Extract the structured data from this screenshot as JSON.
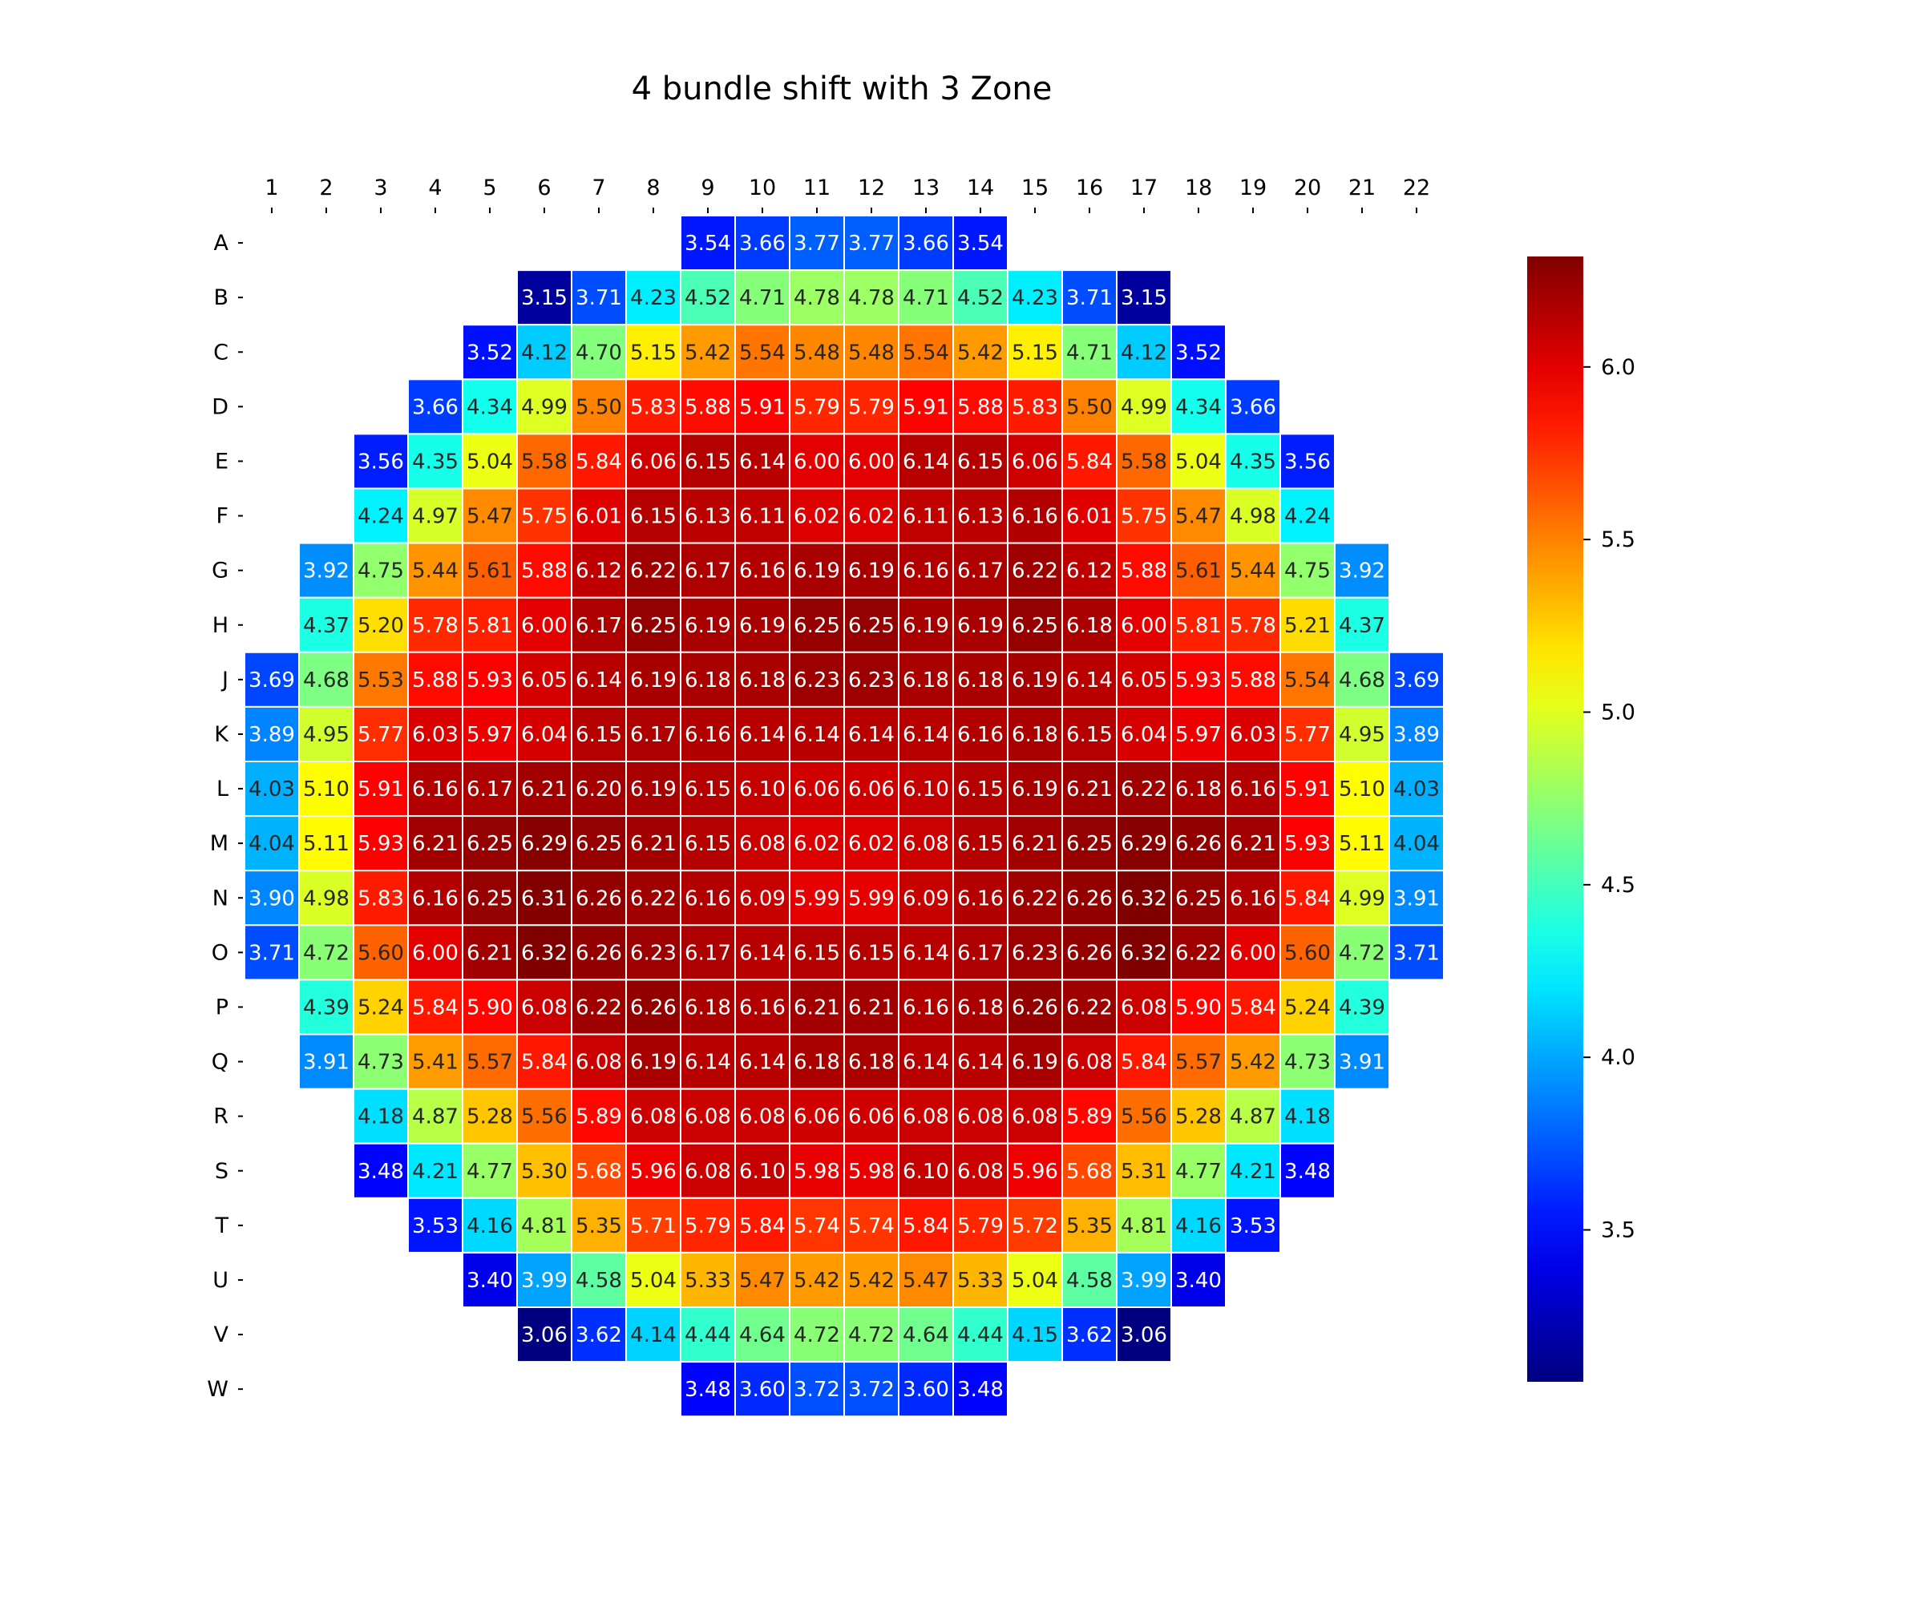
{
  "chart_data": {
    "type": "heatmap",
    "title": "4 bundle shift with 3 Zone",
    "x_labels": [
      "1",
      "2",
      "3",
      "4",
      "5",
      "6",
      "7",
      "8",
      "9",
      "10",
      "11",
      "12",
      "13",
      "14",
      "15",
      "16",
      "17",
      "18",
      "19",
      "20",
      "21",
      "22"
    ],
    "x_axis_position": "top",
    "y_labels": [
      "A",
      "B",
      "C",
      "D",
      "E",
      "F",
      "G",
      "H",
      "J",
      "K",
      "L",
      "M",
      "N",
      "O",
      "P",
      "Q",
      "R",
      "S",
      "T",
      "U",
      "V",
      "W"
    ],
    "colormap": "jet",
    "vmin": 3.06,
    "vmax": 6.32,
    "colorbar_ticks": [
      "6.0",
      "5.5",
      "5.0",
      "4.5",
      "4.0",
      "3.5"
    ],
    "colorbar_tick_values": [
      6.0,
      5.5,
      5.0,
      4.5,
      4.0,
      3.5
    ],
    "colorbar_position": "right",
    "cell_border_color": "#ffffff",
    "rows": [
      {
        "label": "A",
        "start": 9,
        "values": [
          "3.54",
          "3.66",
          "3.77",
          "3.77",
          "3.66",
          "3.54"
        ]
      },
      {
        "label": "B",
        "start": 6,
        "values": [
          "3.15",
          "3.71",
          "4.23",
          "4.52",
          "4.71",
          "4.78",
          "4.78",
          "4.71",
          "4.52",
          "4.23",
          "3.71",
          "3.15"
        ]
      },
      {
        "label": "C",
        "start": 5,
        "values": [
          "3.52",
          "4.12",
          "4.70",
          "5.15",
          "5.42",
          "5.54",
          "5.48",
          "5.48",
          "5.54",
          "5.42",
          "5.15",
          "4.71",
          "4.12",
          "3.52"
        ]
      },
      {
        "label": "D",
        "start": 4,
        "values": [
          "3.66",
          "4.34",
          "4.99",
          "5.50",
          "5.83",
          "5.88",
          "5.91",
          "5.79",
          "5.79",
          "5.91",
          "5.88",
          "5.83",
          "5.50",
          "4.99",
          "4.34",
          "3.66"
        ]
      },
      {
        "label": "E",
        "start": 3,
        "values": [
          "3.56",
          "4.35",
          "5.04",
          "5.58",
          "5.84",
          "6.06",
          "6.15",
          "6.14",
          "6.00",
          "6.00",
          "6.14",
          "6.15",
          "6.06",
          "5.84",
          "5.58",
          "5.04",
          "4.35",
          "3.56"
        ]
      },
      {
        "label": "F",
        "start": 3,
        "values": [
          "4.24",
          "4.97",
          "5.47",
          "5.75",
          "6.01",
          "6.15",
          "6.13",
          "6.11",
          "6.02",
          "6.02",
          "6.11",
          "6.13",
          "6.16",
          "6.01",
          "5.75",
          "5.47",
          "4.98",
          "4.24"
        ]
      },
      {
        "label": "G",
        "start": 2,
        "values": [
          "3.92",
          "4.75",
          "5.44",
          "5.61",
          "5.88",
          "6.12",
          "6.22",
          "6.17",
          "6.16",
          "6.19",
          "6.19",
          "6.16",
          "6.17",
          "6.22",
          "6.12",
          "5.88",
          "5.61",
          "5.44",
          "4.75",
          "3.92"
        ]
      },
      {
        "label": "H",
        "start": 2,
        "values": [
          "4.37",
          "5.20",
          "5.78",
          "5.81",
          "6.00",
          "6.17",
          "6.25",
          "6.19",
          "6.19",
          "6.25",
          "6.25",
          "6.19",
          "6.19",
          "6.25",
          "6.18",
          "6.00",
          "5.81",
          "5.78",
          "5.21",
          "4.37"
        ]
      },
      {
        "label": "J",
        "start": 1,
        "values": [
          "3.69",
          "4.68",
          "5.53",
          "5.88",
          "5.93",
          "6.05",
          "6.14",
          "6.19",
          "6.18",
          "6.18",
          "6.23",
          "6.23",
          "6.18",
          "6.18",
          "6.19",
          "6.14",
          "6.05",
          "5.93",
          "5.88",
          "5.54",
          "4.68",
          "3.69"
        ]
      },
      {
        "label": "K",
        "start": 1,
        "values": [
          "3.89",
          "4.95",
          "5.77",
          "6.03",
          "5.97",
          "6.04",
          "6.15",
          "6.17",
          "6.16",
          "6.14",
          "6.14",
          "6.14",
          "6.14",
          "6.16",
          "6.18",
          "6.15",
          "6.04",
          "5.97",
          "6.03",
          "5.77",
          "4.95",
          "3.89"
        ]
      },
      {
        "label": "L",
        "start": 1,
        "values": [
          "4.03",
          "5.10",
          "5.91",
          "6.16",
          "6.17",
          "6.21",
          "6.20",
          "6.19",
          "6.15",
          "6.10",
          "6.06",
          "6.06",
          "6.10",
          "6.15",
          "6.19",
          "6.21",
          "6.22",
          "6.18",
          "6.16",
          "5.91",
          "5.10",
          "4.03"
        ]
      },
      {
        "label": "M",
        "start": 1,
        "values": [
          "4.04",
          "5.11",
          "5.93",
          "6.21",
          "6.25",
          "6.29",
          "6.25",
          "6.21",
          "6.15",
          "6.08",
          "6.02",
          "6.02",
          "6.08",
          "6.15",
          "6.21",
          "6.25",
          "6.29",
          "6.26",
          "6.21",
          "5.93",
          "5.11",
          "4.04"
        ]
      },
      {
        "label": "N",
        "start": 1,
        "values": [
          "3.90",
          "4.98",
          "5.83",
          "6.16",
          "6.25",
          "6.31",
          "6.26",
          "6.22",
          "6.16",
          "6.09",
          "5.99",
          "5.99",
          "6.09",
          "6.16",
          "6.22",
          "6.26",
          "6.32",
          "6.25",
          "6.16",
          "5.84",
          "4.99",
          "3.91"
        ]
      },
      {
        "label": "O",
        "start": 1,
        "values": [
          "3.71",
          "4.72",
          "5.60",
          "6.00",
          "6.21",
          "6.32",
          "6.26",
          "6.23",
          "6.17",
          "6.14",
          "6.15",
          "6.15",
          "6.14",
          "6.17",
          "6.23",
          "6.26",
          "6.32",
          "6.22",
          "6.00",
          "5.60",
          "4.72",
          "3.71"
        ]
      },
      {
        "label": "P",
        "start": 2,
        "values": [
          "4.39",
          "5.24",
          "5.84",
          "5.90",
          "6.08",
          "6.22",
          "6.26",
          "6.18",
          "6.16",
          "6.21",
          "6.21",
          "6.16",
          "6.18",
          "6.26",
          "6.22",
          "6.08",
          "5.90",
          "5.84",
          "5.24",
          "4.39"
        ]
      },
      {
        "label": "Q",
        "start": 2,
        "values": [
          "3.91",
          "4.73",
          "5.41",
          "5.57",
          "5.84",
          "6.08",
          "6.19",
          "6.14",
          "6.14",
          "6.18",
          "6.18",
          "6.14",
          "6.14",
          "6.19",
          "6.08",
          "5.84",
          "5.57",
          "5.42",
          "4.73",
          "3.91"
        ]
      },
      {
        "label": "R",
        "start": 3,
        "values": [
          "4.18",
          "4.87",
          "5.28",
          "5.56",
          "5.89",
          "6.08",
          "6.08",
          "6.08",
          "6.06",
          "6.06",
          "6.08",
          "6.08",
          "6.08",
          "5.89",
          "5.56",
          "5.28",
          "4.87",
          "4.18"
        ]
      },
      {
        "label": "S",
        "start": 3,
        "values": [
          "3.48",
          "4.21",
          "4.77",
          "5.30",
          "5.68",
          "5.96",
          "6.08",
          "6.10",
          "5.98",
          "5.98",
          "6.10",
          "6.08",
          "5.96",
          "5.68",
          "5.31",
          "4.77",
          "4.21",
          "3.48"
        ]
      },
      {
        "label": "T",
        "start": 4,
        "values": [
          "3.53",
          "4.16",
          "4.81",
          "5.35",
          "5.71",
          "5.79",
          "5.84",
          "5.74",
          "5.74",
          "5.84",
          "5.79",
          "5.72",
          "5.35",
          "4.81",
          "4.16",
          "3.53"
        ]
      },
      {
        "label": "U",
        "start": 5,
        "values": [
          "3.40",
          "3.99",
          "4.58",
          "5.04",
          "5.33",
          "5.47",
          "5.42",
          "5.42",
          "5.47",
          "5.33",
          "5.04",
          "4.58",
          "3.99",
          "3.40"
        ]
      },
      {
        "label": "V",
        "start": 6,
        "values": [
          "3.06",
          "3.62",
          "4.14",
          "4.44",
          "4.64",
          "4.72",
          "4.72",
          "4.64",
          "4.44",
          "4.15",
          "3.62",
          "3.06"
        ]
      },
      {
        "label": "W",
        "start": 9,
        "values": [
          "3.48",
          "3.60",
          "3.72",
          "3.72",
          "3.60",
          "3.48"
        ]
      }
    ]
  }
}
